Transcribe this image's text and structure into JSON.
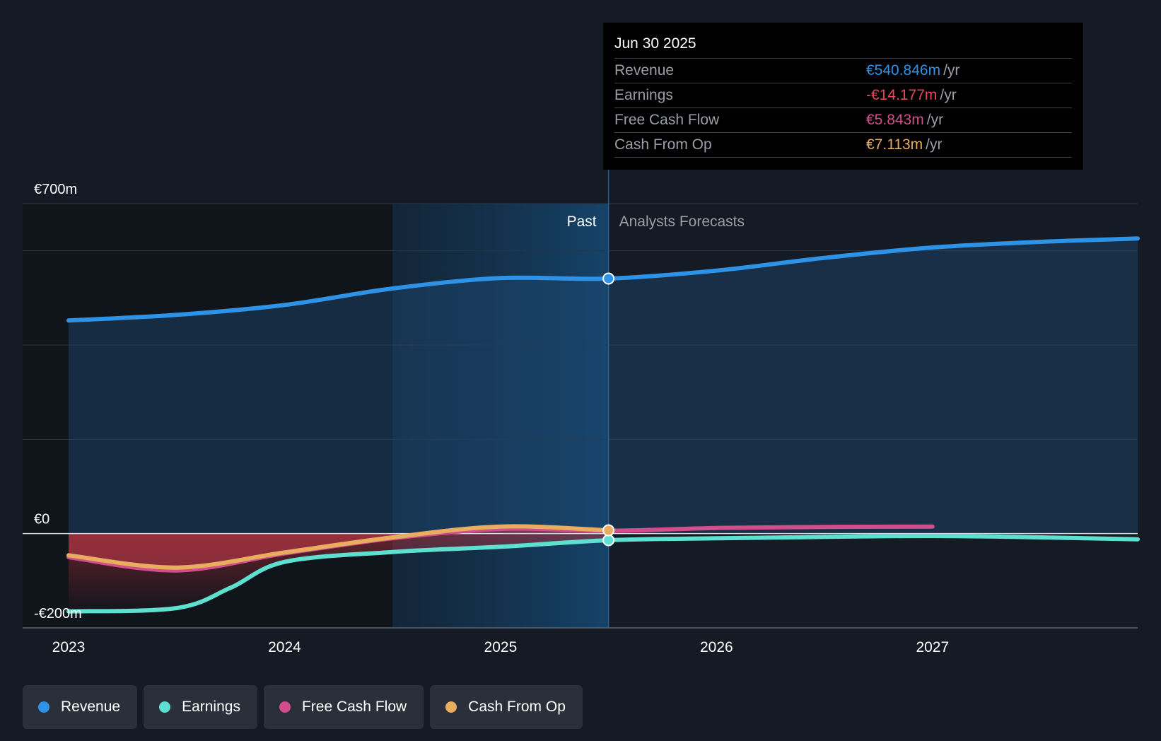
{
  "colors": {
    "revenue": "#2e92e6",
    "earnings": "#5de0cf",
    "fcf": "#d24d8c",
    "cfo": "#e8ad5f",
    "negative": "#e8475a",
    "background": "#151b24"
  },
  "tooltip": {
    "date": "Jun 30 2025",
    "rows": [
      {
        "label": "Revenue",
        "value": "€540.846m",
        "unit": "/yr"
      },
      {
        "label": "Earnings",
        "value": "-€14.177m",
        "unit": "/yr"
      },
      {
        "label": "Free Cash Flow",
        "value": "€5.843m",
        "unit": "/yr"
      },
      {
        "label": "Cash From Op",
        "value": "€7.113m",
        "unit": "/yr"
      }
    ]
  },
  "legend": [
    {
      "name": "Revenue",
      "color": "#2e92e6",
      "icon": "circle-dot-icon"
    },
    {
      "name": "Earnings",
      "color": "#5de0cf",
      "icon": "circle-dot-icon"
    },
    {
      "name": "Free Cash Flow",
      "color": "#d24d8c",
      "icon": "circle-dot-icon"
    },
    {
      "name": "Cash From Op",
      "color": "#e8ad5f",
      "icon": "circle-dot-icon"
    }
  ],
  "chart_data": {
    "type": "line",
    "title": "",
    "xlabel": "",
    "ylabel": "",
    "ylim": [
      -200,
      700
    ],
    "xlim": [
      2023,
      2027.95
    ],
    "y_tick_labels": [
      {
        "value": 700,
        "label": "€700m"
      },
      {
        "value": 0,
        "label": "€0"
      },
      {
        "value": -200,
        "label": "-€200m"
      }
    ],
    "y_gridlines": [
      700,
      600,
      400,
      200,
      0,
      -200
    ],
    "x_ticks": [
      {
        "value": 2023,
        "label": "2023"
      },
      {
        "value": 2024,
        "label": "2024"
      },
      {
        "value": 2025,
        "label": "2025"
      },
      {
        "value": 2026,
        "label": "2026"
      },
      {
        "value": 2027,
        "label": "2027"
      }
    ],
    "past_label": "Past",
    "forecast_label": "Analysts Forecasts",
    "divider_x": 2025.5,
    "highlight_start_x": 2024.5,
    "series": [
      {
        "name": "Revenue",
        "key": "revenue",
        "x": [
          2023,
          2023.5,
          2024,
          2024.5,
          2025,
          2025.5,
          2026,
          2026.5,
          2027,
          2027.5,
          2027.95
        ],
        "y": [
          452,
          464,
          485,
          520,
          542,
          541,
          558,
          585,
          607,
          619,
          626
        ]
      },
      {
        "name": "Earnings",
        "key": "earnings",
        "x": [
          2023,
          2023.5,
          2023.75,
          2024,
          2024.5,
          2025,
          2025.5,
          2026,
          2026.5,
          2027,
          2027.5,
          2027.95
        ],
        "y": [
          -165,
          -158,
          -115,
          -60,
          -39,
          -28,
          -14,
          -10,
          -7,
          -5,
          -8,
          -12
        ]
      },
      {
        "name": "Free Cash Flow",
        "key": "fcf",
        "x": [
          2023,
          2023.5,
          2024,
          2024.5,
          2025,
          2025.5,
          2026,
          2026.5,
          2027
        ],
        "y": [
          -50,
          -78,
          -42,
          -10,
          10,
          6,
          12,
          14,
          15
        ]
      },
      {
        "name": "Cash From Op",
        "key": "cfo",
        "x": [
          2023,
          2023.5,
          2024,
          2024.5,
          2025,
          2025.5
        ],
        "y": [
          -46,
          -72,
          -40,
          -8,
          15,
          7
        ]
      }
    ]
  }
}
